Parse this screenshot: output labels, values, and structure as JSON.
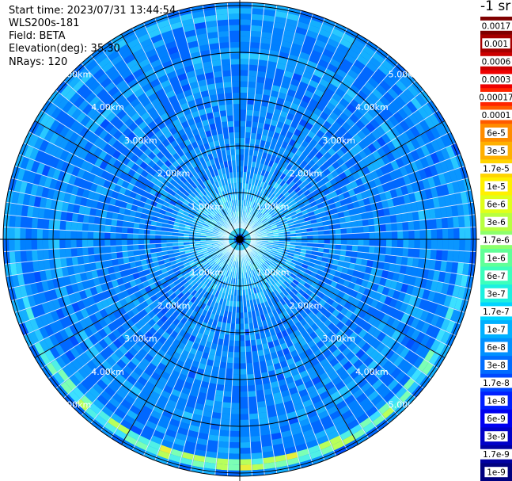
{
  "info": {
    "start_time": "Start time: 2023/07/31 13:44:54",
    "instrument": "WLS200s-181",
    "field": "Field: BETA",
    "elevation": "Elevation(deg): 35.30",
    "nrays": "NRays: 120"
  },
  "colorbar": {
    "unit_label": "-1 sr",
    "ticks": [
      "0.0017",
      "0.001",
      "0.0006",
      "0.0003",
      "0.00017",
      "0.0001",
      "6e-5",
      "3e-5",
      "1.7e-5",
      "1e-5",
      "6e-6",
      "3e-6",
      "1.7e-6",
      "1e-6",
      "6e-7",
      "3e-7",
      "1.7e-7",
      "1e-7",
      "6e-8",
      "3e-8",
      "1.7e-8",
      "1e-8",
      "6e-9",
      "3e-9",
      "1.7e-9",
      "1e-9"
    ],
    "colors": [
      "#7f0000",
      "#a50000",
      "#cc0000",
      "#ee0000",
      "#ff2400",
      "#ff5a00",
      "#ff8c00",
      "#ffb000",
      "#ffd400",
      "#fff000",
      "#e0ff1a",
      "#b8ff40",
      "#8cff6c",
      "#60ff98",
      "#3cffbc",
      "#1cf0e0",
      "#00d4ff",
      "#00b0ff",
      "#0090ff",
      "#006cff",
      "#0048ff",
      "#0020ff",
      "#0000f0",
      "#0000c8",
      "#0000a0",
      "#000080"
    ]
  },
  "chart_data": {
    "type": "heatmap",
    "projection": "polar",
    "title": "",
    "n_rays": 120,
    "range_rings_km": [
      1.0,
      2.0,
      3.0,
      4.0,
      5.0
    ],
    "ring_labels": [
      "1.00km",
      "2.00km",
      "3.00km",
      "4.00km",
      "5.00km"
    ],
    "max_range_km": 5.07,
    "azimuth_gridlines_deg": [
      0,
      30,
      60,
      90,
      120,
      150,
      180,
      210,
      240,
      270,
      300,
      330
    ],
    "color_scale": "log",
    "value_range": [
      1e-09,
      0.0017
    ],
    "dominant_values": "mostly 6e-9 to 1e-7 (blue/cyan), ring of elevated ~1.7e-7 to 1e-6 near 4.7km in the south"
  }
}
